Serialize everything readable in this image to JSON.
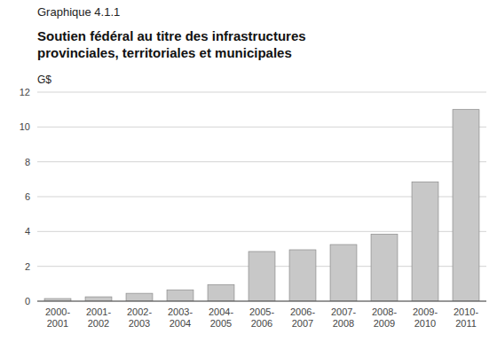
{
  "chart_data": {
    "type": "bar",
    "subtitle": "Graphique 4.1.1",
    "title": "Soutien fédéral au titre des infrastructures\nprovinciales, territoriales et municipales",
    "y_label": "G$",
    "categories": [
      "2000-\n2001",
      "2001-\n2002",
      "2002-\n2003",
      "2003-\n2004",
      "2004-\n2005",
      "2005-\n2006",
      "2006-\n2007",
      "2007-\n2008",
      "2008-\n2009",
      "2009-\n2010",
      "2010-\n2011"
    ],
    "values": [
      0.15,
      0.25,
      0.45,
      0.65,
      0.95,
      2.85,
      2.95,
      3.25,
      3.85,
      6.85,
      11.0
    ],
    "color": "#c8c8c8",
    "ylim": [
      0,
      12
    ],
    "yticks": [
      0,
      2,
      4,
      6,
      8,
      10,
      12
    ],
    "grid": true
  }
}
